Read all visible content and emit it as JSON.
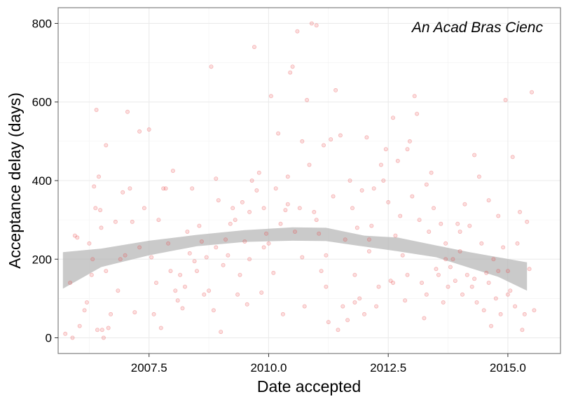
{
  "chart_data": {
    "type": "scatter",
    "annotation": "An Acad Bras Cienc",
    "xlabel": "Date accepted",
    "ylabel": "Acceptance delay (days)",
    "xlim": [
      2005.6,
      2016.1
    ],
    "ylim": [
      -40,
      840
    ],
    "x_ticks": [
      2007.5,
      2010.0,
      2012.5,
      2015.0
    ],
    "x_tick_labels": [
      "2007.5",
      "2010.0",
      "2012.5",
      "2015.0"
    ],
    "y_ticks": [
      0,
      200,
      400,
      600,
      800
    ],
    "y_tick_labels": [
      "0",
      "200",
      "400",
      "600",
      "800"
    ],
    "grid": true,
    "point_color": "#e8474a",
    "smooth_color": "#b3b3b3",
    "smooth_band": {
      "x": [
        2005.7,
        2006.5,
        2007.5,
        2008.5,
        2009.5,
        2010.5,
        2011.2,
        2012.0,
        2012.7,
        2013.5,
        2014.2,
        2014.8,
        2015.4
      ],
      "lower": [
        125,
        180,
        210,
        233,
        244,
        247,
        246,
        232,
        220,
        205,
        178,
        155,
        120
      ],
      "upper": [
        218,
        227,
        247,
        262,
        274,
        281,
        280,
        260,
        255,
        235,
        218,
        205,
        192
      ]
    },
    "points": [
      [
        2005.75,
        10
      ],
      [
        2005.85,
        140
      ],
      [
        2005.9,
        0
      ],
      [
        2005.95,
        260
      ],
      [
        2006.0,
        255
      ],
      [
        2006.05,
        30
      ],
      [
        2006.15,
        70
      ],
      [
        2006.2,
        90
      ],
      [
        2006.25,
        240
      ],
      [
        2006.3,
        160
      ],
      [
        2006.32,
        200
      ],
      [
        2006.35,
        385
      ],
      [
        2006.38,
        330
      ],
      [
        2006.4,
        580
      ],
      [
        2006.42,
        20
      ],
      [
        2006.45,
        410
      ],
      [
        2006.48,
        325
      ],
      [
        2006.5,
        280
      ],
      [
        2006.52,
        20
      ],
      [
        2006.55,
        0
      ],
      [
        2006.6,
        490
      ],
      [
        2006.65,
        25
      ],
      [
        2006.7,
        60
      ],
      [
        2006.8,
        295
      ],
      [
        2006.85,
        120
      ],
      [
        2006.9,
        200
      ],
      [
        2006.95,
        370
      ],
      [
        2007.0,
        210
      ],
      [
        2007.05,
        575
      ],
      [
        2007.1,
        380
      ],
      [
        2007.15,
        295
      ],
      [
        2007.2,
        65
      ],
      [
        2007.3,
        525
      ],
      [
        2007.4,
        330
      ],
      [
        2007.5,
        530
      ],
      [
        2007.55,
        205
      ],
      [
        2007.6,
        60
      ],
      [
        2007.65,
        140
      ],
      [
        2007.7,
        300
      ],
      [
        2007.75,
        25
      ],
      [
        2007.8,
        380
      ],
      [
        2007.85,
        380
      ],
      [
        2007.9,
        240
      ],
      [
        2007.95,
        170
      ],
      [
        2008.0,
        425
      ],
      [
        2008.05,
        120
      ],
      [
        2008.1,
        95
      ],
      [
        2008.15,
        160
      ],
      [
        2008.2,
        75
      ],
      [
        2008.25,
        130
      ],
      [
        2008.3,
        270
      ],
      [
        2008.35,
        215
      ],
      [
        2008.4,
        380
      ],
      [
        2008.45,
        195
      ],
      [
        2008.5,
        170
      ],
      [
        2008.55,
        285
      ],
      [
        2008.6,
        245
      ],
      [
        2008.65,
        110
      ],
      [
        2008.7,
        205
      ],
      [
        2008.75,
        120
      ],
      [
        2008.8,
        690
      ],
      [
        2008.85,
        70
      ],
      [
        2008.9,
        405
      ],
      [
        2008.95,
        350
      ],
      [
        2009.0,
        15
      ],
      [
        2009.05,
        185
      ],
      [
        2009.1,
        250
      ],
      [
        2009.15,
        210
      ],
      [
        2009.2,
        290
      ],
      [
        2009.25,
        330
      ],
      [
        2009.3,
        300
      ],
      [
        2009.35,
        110
      ],
      [
        2009.4,
        160
      ],
      [
        2009.45,
        345
      ],
      [
        2009.5,
        245
      ],
      [
        2009.55,
        85
      ],
      [
        2009.6,
        200
      ],
      [
        2009.65,
        400
      ],
      [
        2009.7,
        740
      ],
      [
        2009.75,
        375
      ],
      [
        2009.8,
        420
      ],
      [
        2009.85,
        115
      ],
      [
        2009.9,
        330
      ],
      [
        2009.95,
        265
      ],
      [
        2010.0,
        240
      ],
      [
        2010.05,
        615
      ],
      [
        2010.1,
        165
      ],
      [
        2010.15,
        380
      ],
      [
        2010.2,
        520
      ],
      [
        2010.25,
        290
      ],
      [
        2010.3,
        60
      ],
      [
        2010.35,
        325
      ],
      [
        2010.4,
        410
      ],
      [
        2010.45,
        675
      ],
      [
        2010.5,
        690
      ],
      [
        2010.55,
        270
      ],
      [
        2010.6,
        780
      ],
      [
        2010.65,
        330
      ],
      [
        2010.7,
        500
      ],
      [
        2010.75,
        80
      ],
      [
        2010.8,
        605
      ],
      [
        2010.85,
        440
      ],
      [
        2010.9,
        800
      ],
      [
        2010.95,
        320
      ],
      [
        2011.0,
        795
      ],
      [
        2011.05,
        265
      ],
      [
        2011.1,
        170
      ],
      [
        2011.15,
        490
      ],
      [
        2011.2,
        130
      ],
      [
        2011.25,
        40
      ],
      [
        2011.3,
        505
      ],
      [
        2011.35,
        360
      ],
      [
        2011.4,
        630
      ],
      [
        2011.45,
        20
      ],
      [
        2011.5,
        515
      ],
      [
        2011.55,
        80
      ],
      [
        2011.6,
        250
      ],
      [
        2011.65,
        45
      ],
      [
        2011.7,
        400
      ],
      [
        2011.75,
        330
      ],
      [
        2011.8,
        160
      ],
      [
        2011.85,
        280
      ],
      [
        2011.9,
        100
      ],
      [
        2011.95,
        375
      ],
      [
        2012.0,
        60
      ],
      [
        2012.05,
        510
      ],
      [
        2012.1,
        220
      ],
      [
        2012.15,
        285
      ],
      [
        2012.2,
        380
      ],
      [
        2012.25,
        80
      ],
      [
        2012.3,
        130
      ],
      [
        2012.35,
        440
      ],
      [
        2012.4,
        400
      ],
      [
        2012.45,
        480
      ],
      [
        2012.5,
        345
      ],
      [
        2012.55,
        145
      ],
      [
        2012.6,
        560
      ],
      [
        2012.65,
        260
      ],
      [
        2012.7,
        450
      ],
      [
        2012.75,
        310
      ],
      [
        2012.8,
        210
      ],
      [
        2012.85,
        95
      ],
      [
        2012.9,
        480
      ],
      [
        2012.95,
        500
      ],
      [
        2013.0,
        360
      ],
      [
        2013.05,
        615
      ],
      [
        2013.1,
        570
      ],
      [
        2013.15,
        300
      ],
      [
        2013.2,
        140
      ],
      [
        2013.25,
        50
      ],
      [
        2013.3,
        390
      ],
      [
        2013.35,
        270
      ],
      [
        2013.4,
        420
      ],
      [
        2013.45,
        330
      ],
      [
        2013.5,
        175
      ],
      [
        2013.55,
        160
      ],
      [
        2013.6,
        290
      ],
      [
        2013.65,
        90
      ],
      [
        2013.7,
        240
      ],
      [
        2013.75,
        130
      ],
      [
        2013.8,
        180
      ],
      [
        2013.85,
        200
      ],
      [
        2013.9,
        145
      ],
      [
        2013.95,
        290
      ],
      [
        2014.0,
        220
      ],
      [
        2014.05,
        110
      ],
      [
        2014.1,
        340
      ],
      [
        2014.15,
        160
      ],
      [
        2014.2,
        285
      ],
      [
        2014.25,
        130
      ],
      [
        2014.3,
        465
      ],
      [
        2014.35,
        90
      ],
      [
        2014.4,
        410
      ],
      [
        2014.45,
        240
      ],
      [
        2014.5,
        70
      ],
      [
        2014.55,
        165
      ],
      [
        2014.6,
        350
      ],
      [
        2014.65,
        30
      ],
      [
        2014.7,
        200
      ],
      [
        2014.75,
        100
      ],
      [
        2014.8,
        310
      ],
      [
        2014.85,
        60
      ],
      [
        2014.9,
        230
      ],
      [
        2014.95,
        605
      ],
      [
        2015.0,
        170
      ],
      [
        2015.05,
        120
      ],
      [
        2015.1,
        460
      ],
      [
        2015.15,
        80
      ],
      [
        2015.2,
        240
      ],
      [
        2015.25,
        320
      ],
      [
        2015.3,
        20
      ],
      [
        2015.35,
        60
      ],
      [
        2015.4,
        295
      ],
      [
        2015.45,
        175
      ],
      [
        2015.5,
        625
      ],
      [
        2015.55,
        70
      ],
      [
        2006.6,
        170
      ],
      [
        2007.3,
        230
      ],
      [
        2008.9,
        230
      ],
      [
        2009.9,
        230
      ],
      [
        2010.7,
        205
      ],
      [
        2011.2,
        210
      ],
      [
        2012.1,
        250
      ],
      [
        2012.9,
        160
      ],
      [
        2013.7,
        200
      ],
      [
        2014.3,
        150
      ],
      [
        2014.6,
        140
      ],
      [
        2015.0,
        110
      ],
      [
        2009.6,
        320
      ],
      [
        2010.4,
        340
      ],
      [
        2011.0,
        300
      ],
      [
        2011.8,
        90
      ],
      [
        2012.6,
        140
      ],
      [
        2013.3,
        110
      ],
      [
        2014.0,
        270
      ],
      [
        2014.8,
        170
      ]
    ]
  }
}
